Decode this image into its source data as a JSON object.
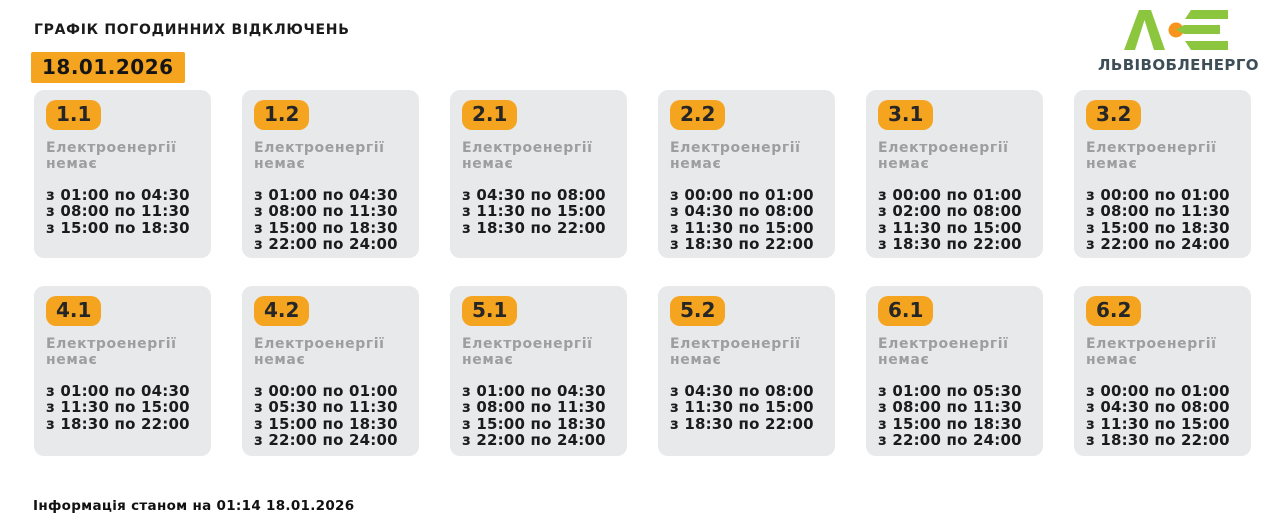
{
  "header": {
    "title": "ГРАФІК ПОГОДИННИХ ВІДКЛЮЧЕНЬ",
    "date": "18.01.2026"
  },
  "logo": {
    "company": "ЛЬВІВОБЛЕНЕРГО",
    "mark": "loe-logo-icon"
  },
  "colors": {
    "accent_orange": "#f5a41f",
    "card_background": "#e8e9ea",
    "status_gray": "#9c9ea0",
    "logo_green": "#8cc63e",
    "logo_orange": "#f7941d",
    "logo_text": "#3d4e57"
  },
  "footer": {
    "note": "Інформація станом на 01:14 18.01.2026"
  },
  "cards": [
    {
      "group": "1.1",
      "status": "Електроенергії немає",
      "times": [
        "з 01:00 по 04:30",
        "з 08:00 по 11:30",
        "з 15:00 по 18:30"
      ]
    },
    {
      "group": "1.2",
      "status": "Електроенергії немає",
      "times": [
        "з 01:00 по 04:30",
        "з 08:00 по 11:30",
        "з 15:00 по 18:30",
        "з 22:00 по 24:00"
      ]
    },
    {
      "group": "2.1",
      "status": "Електроенергії немає",
      "times": [
        "з 04:30 по 08:00",
        "з 11:30 по 15:00",
        "з 18:30 по 22:00"
      ]
    },
    {
      "group": "2.2",
      "status": "Електроенергії немає",
      "times": [
        "з 00:00 по 01:00",
        "з 04:30 по 08:00",
        "з 11:30 по 15:00",
        "з 18:30 по 22:00"
      ]
    },
    {
      "group": "3.1",
      "status": "Електроенергії немає",
      "times": [
        "з 00:00 по 01:00",
        "з 02:00 по 08:00",
        "з 11:30 по 15:00",
        "з 18:30 по 22:00"
      ]
    },
    {
      "group": "3.2",
      "status": "Електроенергії немає",
      "times": [
        "з 00:00 по 01:00",
        "з 08:00 по 11:30",
        "з 15:00 по 18:30",
        "з 22:00 по 24:00"
      ]
    },
    {
      "group": "4.1",
      "status": "Електроенергії немає",
      "times": [
        "з 01:00 по 04:30",
        "з 11:30 по 15:00",
        "з 18:30 по 22:00"
      ]
    },
    {
      "group": "4.2",
      "status": "Електроенергії немає",
      "times": [
        "з 00:00 по 01:00",
        "з 05:30 по 11:30",
        "з 15:00 по 18:30",
        "з 22:00 по 24:00"
      ]
    },
    {
      "group": "5.1",
      "status": "Електроенергії немає",
      "times": [
        "з 01:00 по 04:30",
        "з 08:00 по 11:30",
        "з 15:00 по 18:30",
        "з 22:00 по 24:00"
      ]
    },
    {
      "group": "5.2",
      "status": "Електроенергії немає",
      "times": [
        "з 04:30 по 08:00",
        "з 11:30 по 15:00",
        "з 18:30 по 22:00"
      ]
    },
    {
      "group": "6.1",
      "status": "Електроенергії немає",
      "times": [
        "з 01:00 по 05:30",
        "з 08:00 по 11:30",
        "з 15:00 по 18:30",
        "з 22:00 по 24:00"
      ]
    },
    {
      "group": "6.2",
      "status": "Електроенергії немає",
      "times": [
        "з 00:00 по 01:00",
        "з 04:30 по 08:00",
        "з 11:30 по 15:00",
        "з 18:30 по 22:00"
      ]
    }
  ]
}
